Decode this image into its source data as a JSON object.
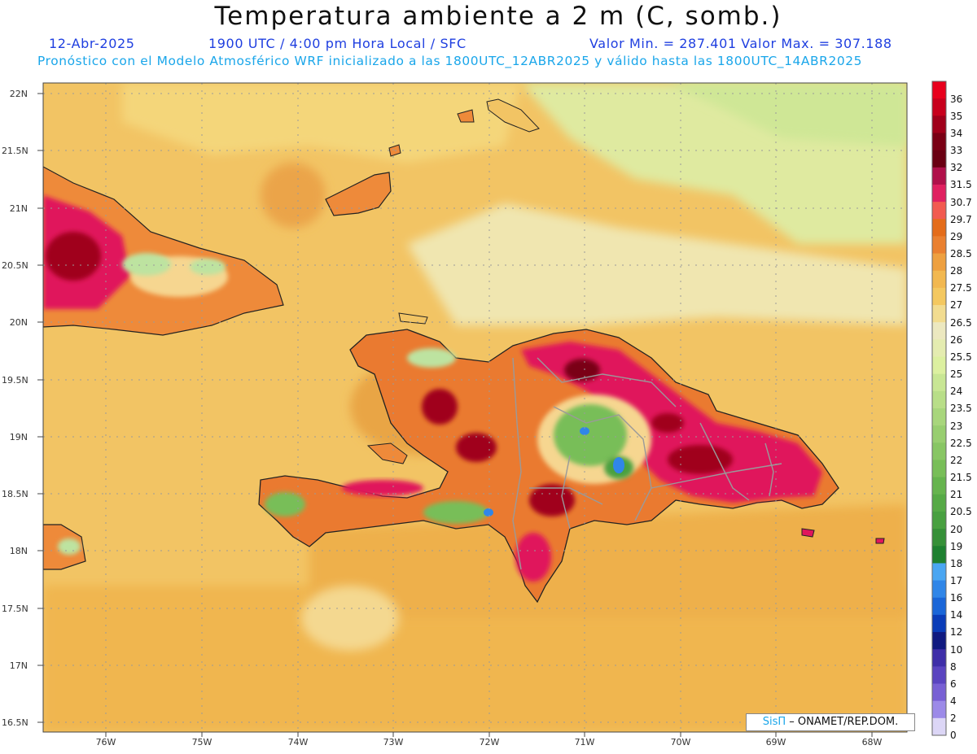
{
  "header": {
    "title": "Temperatura ambiente a 2 m (C, somb.)",
    "date": "12-Abr-2025",
    "time": "1900 UTC / 4:00 pm Hora Local / SFC",
    "min_max": "Valor Min. = 287.401  Valor Max. = 307.188",
    "forecast": "Pronóstico con el Modelo Atmosférico WRF inicializado a las 1800UTC_12ABR2025 y válido hasta las  1800UTC_14ABR2025"
  },
  "map": {
    "lat_labels": [
      "22N",
      "21.5N",
      "21N",
      "20.5N",
      "20N",
      "19.5N",
      "19N",
      "18.5N",
      "18N",
      "17.5N",
      "17N",
      "16.5N"
    ],
    "lon_labels": [
      "76W",
      "75W",
      "74W",
      "73W",
      "72W",
      "71W",
      "70W",
      "69W",
      "68W"
    ],
    "background_color": "#f2c464",
    "hot_color": "#e0155c",
    "cool_color": "#5fb86a"
  },
  "colorbar": {
    "labels": [
      "36",
      "35",
      "34",
      "33",
      "32",
      "31.5",
      "30.7",
      "29.7",
      "29",
      "28.5",
      "28",
      "27.5",
      "27",
      "26.5",
      "26",
      "25.5",
      "25",
      "24",
      "23.5",
      "23",
      "22.5",
      "22",
      "21.5",
      "21",
      "20.5",
      "20",
      "19",
      "18",
      "17",
      "16",
      "14",
      "12",
      "10",
      "8",
      "6",
      "4",
      "2",
      "0"
    ],
    "colors": [
      "#e8001c",
      "#c8001c",
      "#a0001a",
      "#7a0014",
      "#6a0012",
      "#b0104a",
      "#e02060",
      "#f25a50",
      "#e46c1a",
      "#ea8030",
      "#eea040",
      "#f2b850",
      "#f4c860",
      "#f2dc90",
      "#ece8c0",
      "#e4ecb0",
      "#dcf0a0",
      "#c8e694",
      "#b8de88",
      "#a8d67c",
      "#98ce70",
      "#88c664",
      "#78be58",
      "#66b44e",
      "#56aa46",
      "#48a040",
      "#369038",
      "#1e8030",
      "#4aa6f2",
      "#3086e8",
      "#1a66d8",
      "#0a3cb8",
      "#101a80",
      "#3e2ea8",
      "#5a44c0",
      "#7860d4",
      "#9c8ae8",
      "#dcd6f6"
    ]
  },
  "credit": {
    "sis": "SisΠ",
    "rest": " – ONAMET/REP.DOM."
  }
}
